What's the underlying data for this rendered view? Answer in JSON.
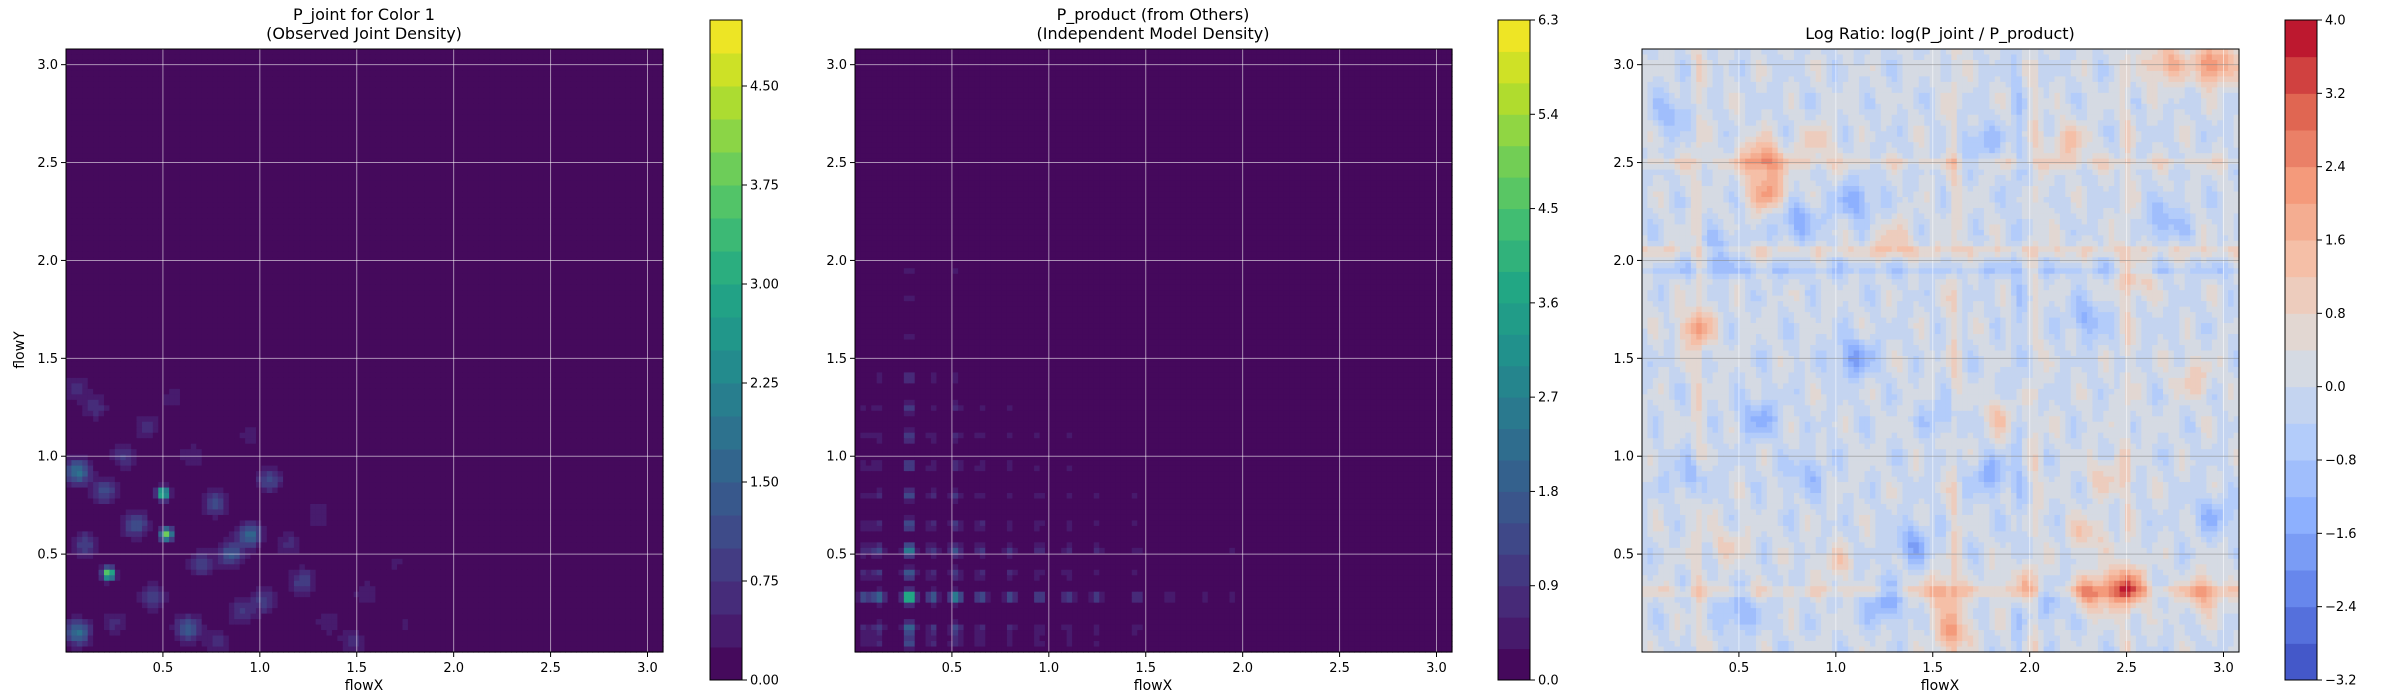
{
  "figure": {
    "background": "#ffffff"
  },
  "chart_data": [
    {
      "type": "heatmap",
      "title_lines": [
        "P_joint for Color 1",
        "(Observed Joint Density)"
      ],
      "xlabel": "flowX",
      "ylabel": "flowY",
      "xlim": [
        0.0,
        3.08
      ],
      "ylim": [
        0.0,
        3.08
      ],
      "xticks": [
        0.5,
        1.0,
        1.5,
        2.0,
        2.5,
        3.0
      ],
      "yticks": [
        0.5,
        1.0,
        1.5,
        2.0,
        2.5,
        3.0
      ],
      "xticklabels": [
        "0.5",
        "1.0",
        "1.5",
        "2.0",
        "2.5",
        "3.0"
      ],
      "yticklabels": [
        "0.5",
        "1.0",
        "1.5",
        "2.0",
        "2.5",
        "3.0"
      ],
      "grid": true,
      "colormap": "viridis",
      "colorbar": {
        "min": 0.0,
        "max": 5.0,
        "levels": 20,
        "ticks": [
          0.0,
          0.75,
          1.5,
          2.25,
          3.0,
          3.75,
          4.5
        ],
        "ticklabels": [
          "0.00",
          "0.75",
          "1.50",
          "2.25",
          "3.00",
          "3.75",
          "4.50"
        ]
      },
      "peaks": [
        {
          "x": 0.22,
          "y": 0.4,
          "value": 4.3
        },
        {
          "x": 0.52,
          "y": 0.6,
          "value": 3.9
        },
        {
          "x": 0.5,
          "y": 0.81,
          "value": 3.7
        },
        {
          "x": 0.06,
          "y": 0.92,
          "value": 1.9
        },
        {
          "x": 0.06,
          "y": 0.1,
          "value": 1.8
        },
        {
          "x": 0.95,
          "y": 0.6,
          "value": 1.6
        },
        {
          "x": 0.63,
          "y": 0.12,
          "value": 1.5
        },
        {
          "x": 0.85,
          "y": 0.5,
          "value": 1.3
        },
        {
          "x": 0.36,
          "y": 0.65,
          "value": 1.3
        },
        {
          "x": 0.2,
          "y": 0.82,
          "value": 1.1
        },
        {
          "x": 0.77,
          "y": 0.76,
          "value": 1.1
        },
        {
          "x": 1.05,
          "y": 0.88,
          "value": 1.1
        },
        {
          "x": 1.22,
          "y": 0.36,
          "value": 1.0
        },
        {
          "x": 0.45,
          "y": 0.28,
          "value": 1.0
        },
        {
          "x": 0.1,
          "y": 0.55,
          "value": 1.0
        },
        {
          "x": 0.7,
          "y": 0.45,
          "value": 0.9
        },
        {
          "x": 1.02,
          "y": 0.26,
          "value": 0.9
        },
        {
          "x": 0.3,
          "y": 1.0,
          "value": 0.8
        },
        {
          "x": 0.9,
          "y": 0.2,
          "value": 0.8
        },
        {
          "x": 0.15,
          "y": 1.25,
          "value": 0.7
        },
        {
          "x": 1.48,
          "y": 0.05,
          "value": 0.7
        },
        {
          "x": 0.42,
          "y": 1.15,
          "value": 0.6
        },
        {
          "x": 1.15,
          "y": 0.55,
          "value": 0.6
        },
        {
          "x": 0.05,
          "y": 1.35,
          "value": 0.6
        },
        {
          "x": 1.3,
          "y": 0.7,
          "value": 0.5
        },
        {
          "x": 0.65,
          "y": 1.0,
          "value": 0.5
        },
        {
          "x": 1.55,
          "y": 0.3,
          "value": 0.5
        },
        {
          "x": 0.25,
          "y": 0.15,
          "value": 0.6
        },
        {
          "x": 0.78,
          "y": 0.05,
          "value": 0.6
        },
        {
          "x": 1.35,
          "y": 0.15,
          "value": 0.5
        },
        {
          "x": 0.55,
          "y": 1.3,
          "value": 0.4
        },
        {
          "x": 0.95,
          "y": 1.1,
          "value": 0.4
        },
        {
          "x": 1.7,
          "y": 0.45,
          "value": 0.3
        },
        {
          "x": 1.75,
          "y": 0.15,
          "value": 0.3
        },
        {
          "x": 0.12,
          "y": 1.8,
          "value": 0.2
        },
        {
          "x": 1.9,
          "y": 0.55,
          "value": 0.2
        }
      ]
    },
    {
      "type": "heatmap",
      "title_lines": [
        "P_product (from Others)",
        "(Independent Model Density)"
      ],
      "xlabel": "flowX",
      "ylabel": "",
      "xlim": [
        0.0,
        3.08
      ],
      "ylim": [
        0.0,
        3.08
      ],
      "xticks": [
        0.5,
        1.0,
        1.5,
        2.0,
        2.5,
        3.0
      ],
      "yticks": [
        0.5,
        1.0,
        1.5,
        2.0,
        2.5,
        3.0
      ],
      "xticklabels": [
        "0.5",
        "1.0",
        "1.5",
        "2.0",
        "2.5",
        "3.0"
      ],
      "yticklabels": [
        "0.5",
        "1.0",
        "1.5",
        "2.0",
        "2.5",
        "3.0"
      ],
      "grid": true,
      "colormap": "viridis",
      "colorbar": {
        "min": 0.0,
        "max": 6.3,
        "levels": 21,
        "ticks": [
          0.0,
          0.9,
          1.8,
          2.7,
          3.6,
          4.5,
          5.4,
          6.3
        ],
        "ticklabels": [
          "0.0",
          "0.9",
          "1.8",
          "2.7",
          "3.6",
          "4.5",
          "5.4",
          "6.3"
        ]
      },
      "marginal_x": [
        {
          "x": 0.28,
          "weight": 1.0
        },
        {
          "x": 0.52,
          "weight": 0.55
        },
        {
          "x": 0.12,
          "weight": 0.45
        },
        {
          "x": 0.4,
          "weight": 0.4
        },
        {
          "x": 0.65,
          "weight": 0.35
        },
        {
          "x": 0.8,
          "weight": 0.3
        },
        {
          "x": 0.95,
          "weight": 0.28
        },
        {
          "x": 1.1,
          "weight": 0.25
        },
        {
          "x": 1.25,
          "weight": 0.22
        },
        {
          "x": 1.45,
          "weight": 0.2
        },
        {
          "x": 1.62,
          "weight": 0.1
        },
        {
          "x": 1.8,
          "weight": 0.08
        },
        {
          "x": 1.95,
          "weight": 0.1
        },
        {
          "x": 0.05,
          "weight": 0.3
        }
      ],
      "marginal_y": [
        {
          "y": 0.28,
          "weight": 1.0
        },
        {
          "y": 0.52,
          "weight": 0.55
        },
        {
          "y": 0.12,
          "weight": 0.45
        },
        {
          "y": 0.4,
          "weight": 0.4
        },
        {
          "y": 0.65,
          "weight": 0.35
        },
        {
          "y": 0.8,
          "weight": 0.3
        },
        {
          "y": 0.95,
          "weight": 0.28
        },
        {
          "y": 1.1,
          "weight": 0.25
        },
        {
          "y": 1.25,
          "weight": 0.22
        },
        {
          "y": 1.4,
          "weight": 0.2
        },
        {
          "y": 1.6,
          "weight": 0.08
        },
        {
          "y": 1.8,
          "weight": 0.08
        },
        {
          "y": 1.95,
          "weight": 0.1
        },
        {
          "y": 0.05,
          "weight": 0.3
        }
      ]
    },
    {
      "type": "heatmap",
      "title_lines": [
        "Log Ratio: log(P_joint / P_product)"
      ],
      "xlabel": "flowX",
      "ylabel": "",
      "xlim": [
        0.0,
        3.08
      ],
      "ylim": [
        0.0,
        3.08
      ],
      "xticks": [
        0.5,
        1.0,
        1.5,
        2.0,
        2.5,
        3.0
      ],
      "yticks": [
        0.5,
        1.0,
        1.5,
        2.0,
        2.5,
        3.0
      ],
      "xticklabels": [
        "0.5",
        "1.0",
        "1.5",
        "2.0",
        "2.5",
        "3.0"
      ],
      "yticklabels": [
        "0.5",
        "1.0",
        "1.5",
        "2.0",
        "2.5",
        "3.0"
      ],
      "grid": true,
      "colormap": "coolwarm",
      "colorbar": {
        "min": -3.2,
        "max": 4.0,
        "levels": 18,
        "ticks": [
          -3.2,
          -2.4,
          -1.6,
          -0.8,
          0.0,
          0.8,
          1.6,
          2.4,
          3.2,
          4.0
        ],
        "ticklabels": [
          "−3.2",
          "−2.4",
          "−1.6",
          "−0.8",
          "0.0",
          "0.8",
          "1.6",
          "2.4",
          "3.2",
          "4.0"
        ]
      },
      "hotspots": [
        {
          "x": 2.95,
          "y": 3.0,
          "value": 2.6
        },
        {
          "x": 2.7,
          "y": 3.0,
          "value": 1.8
        },
        {
          "x": 0.62,
          "y": 2.52,
          "value": 2.2
        },
        {
          "x": 0.65,
          "y": 2.35,
          "value": 2.0
        },
        {
          "x": 2.5,
          "y": 0.33,
          "value": 2.6
        },
        {
          "x": 2.33,
          "y": 0.3,
          "value": 2.0
        },
        {
          "x": 2.9,
          "y": 0.3,
          "value": 1.6
        },
        {
          "x": 1.6,
          "y": 0.1,
          "value": 1.6
        },
        {
          "x": 1.55,
          "y": 0.3,
          "value": 1.4
        },
        {
          "x": 1.95,
          "y": 0.35,
          "value": 1.2
        },
        {
          "x": 0.28,
          "y": 1.65,
          "value": 1.6
        },
        {
          "x": 2.3,
          "y": 0.6,
          "value": 1.1
        },
        {
          "x": 2.4,
          "y": 0.9,
          "value": 1.0
        },
        {
          "x": 2.85,
          "y": 1.4,
          "value": 1.0
        },
        {
          "x": 1.85,
          "y": 1.2,
          "value": 1.0
        },
        {
          "x": 1.3,
          "y": 2.1,
          "value": 1.0
        },
        {
          "x": 2.2,
          "y": 2.6,
          "value": 1.2
        },
        {
          "x": 0.9,
          "y": 2.6,
          "value": 0.9
        },
        {
          "x": 0.45,
          "y": 0.55,
          "value": 0.8
        },
        {
          "x": 1.0,
          "y": 0.45,
          "value": 0.8
        },
        {
          "x": 2.55,
          "y": 1.9,
          "value": 1.0
        },
        {
          "x": 1.1,
          "y": 1.5,
          "value": -1.6
        },
        {
          "x": 0.8,
          "y": 2.2,
          "value": -1.4
        },
        {
          "x": 1.1,
          "y": 2.3,
          "value": -1.4
        },
        {
          "x": 0.4,
          "y": 2.05,
          "value": -1.2
        },
        {
          "x": 0.6,
          "y": 1.2,
          "value": -1.3
        },
        {
          "x": 1.4,
          "y": 0.55,
          "value": -1.4
        },
        {
          "x": 1.8,
          "y": 0.9,
          "value": -1.3
        },
        {
          "x": 0.5,
          "y": 0.2,
          "value": -1.2
        },
        {
          "x": 1.25,
          "y": 0.25,
          "value": -1.5
        },
        {
          "x": 2.3,
          "y": 1.7,
          "value": -1.2
        },
        {
          "x": 2.7,
          "y": 2.2,
          "value": -1.2
        },
        {
          "x": 1.75,
          "y": 2.6,
          "value": -1.0
        },
        {
          "x": 0.15,
          "y": 2.75,
          "value": -1.0
        },
        {
          "x": 2.95,
          "y": 0.7,
          "value": -1.1
        },
        {
          "x": 0.25,
          "y": 0.9,
          "value": -1.0
        },
        {
          "x": 2.1,
          "y": 0.25,
          "value": -1.0
        },
        {
          "x": 0.85,
          "y": 0.9,
          "value": -0.9
        },
        {
          "x": 1.55,
          "y": 1.2,
          "value": -0.9
        }
      ],
      "bands_x": [
        {
          "x": 0.29,
          "value": 0.6
        },
        {
          "x": 1.61,
          "value": 0.7
        },
        {
          "x": 1.94,
          "value": -0.5
        },
        {
          "x": 2.03,
          "value": 0.5
        },
        {
          "x": 2.5,
          "value": 0.6
        }
      ],
      "bands_y": [
        {
          "y": 0.31,
          "value": 0.7
        },
        {
          "y": 2.05,
          "value": 0.7
        },
        {
          "y": 1.95,
          "value": -0.6
        },
        {
          "y": 2.5,
          "value": 0.6
        }
      ]
    }
  ]
}
